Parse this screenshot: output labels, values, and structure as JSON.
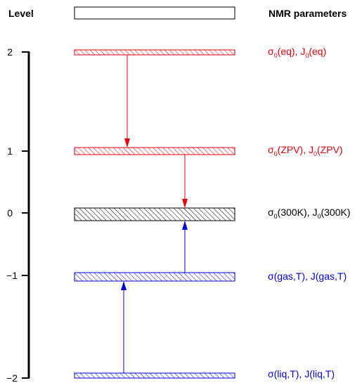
{
  "header": {
    "level_label": "Level",
    "params_label": "NMR parameters"
  },
  "axis": {
    "ticks": [
      "2",
      "1",
      "0",
      "−1",
      "−2"
    ]
  },
  "colors": {
    "equilibrium": "#e8000b",
    "thermal": "#000000",
    "environment": "#0000e0"
  },
  "levels": [
    {
      "id": "eq",
      "value": 2,
      "color": "#e8000b",
      "s": "σ",
      "s_sub": "0",
      "s_arg": "(eq)",
      "sep": ", ",
      "j": "J",
      "j_sub": "0",
      "j_arg": "(eq)"
    },
    {
      "id": "zpv",
      "value": 1,
      "color": "#e8000b",
      "s": "σ",
      "s_sub": "0",
      "s_arg": "(ZPV)",
      "sep": ", ",
      "j": "J",
      "j_sub": "0",
      "j_arg": "(ZPV)"
    },
    {
      "id": "300k",
      "value": 0,
      "color": "#000000",
      "s": "σ",
      "s_sub": "0",
      "s_arg": "(300K)",
      "sep": ", ",
      "j": "J",
      "j_sub": "0",
      "j_arg": "(300K)"
    },
    {
      "id": "gas",
      "value": -1,
      "color": "#0000e0",
      "s": "σ",
      "s_sub": "",
      "s_arg": "(gas,T)",
      "sep": ", ",
      "j": "J",
      "j_sub": "",
      "j_arg": "(gas,T)"
    },
    {
      "id": "liq",
      "value": -2,
      "color": "#0000e0",
      "s": "σ",
      "s_sub": "",
      "s_arg": "(liq,T)",
      "sep": ", ",
      "j": "J",
      "j_sub": "",
      "j_arg": "(liq,T)"
    }
  ],
  "arrows": [
    {
      "from": 2,
      "to": 1,
      "color": "#e8000b"
    },
    {
      "from": 1,
      "to": 0,
      "color": "#e8000b"
    },
    {
      "from": -1,
      "to": 0,
      "color": "#0000e0"
    },
    {
      "from": -2,
      "to": -1,
      "color": "#0000e0"
    }
  ]
}
